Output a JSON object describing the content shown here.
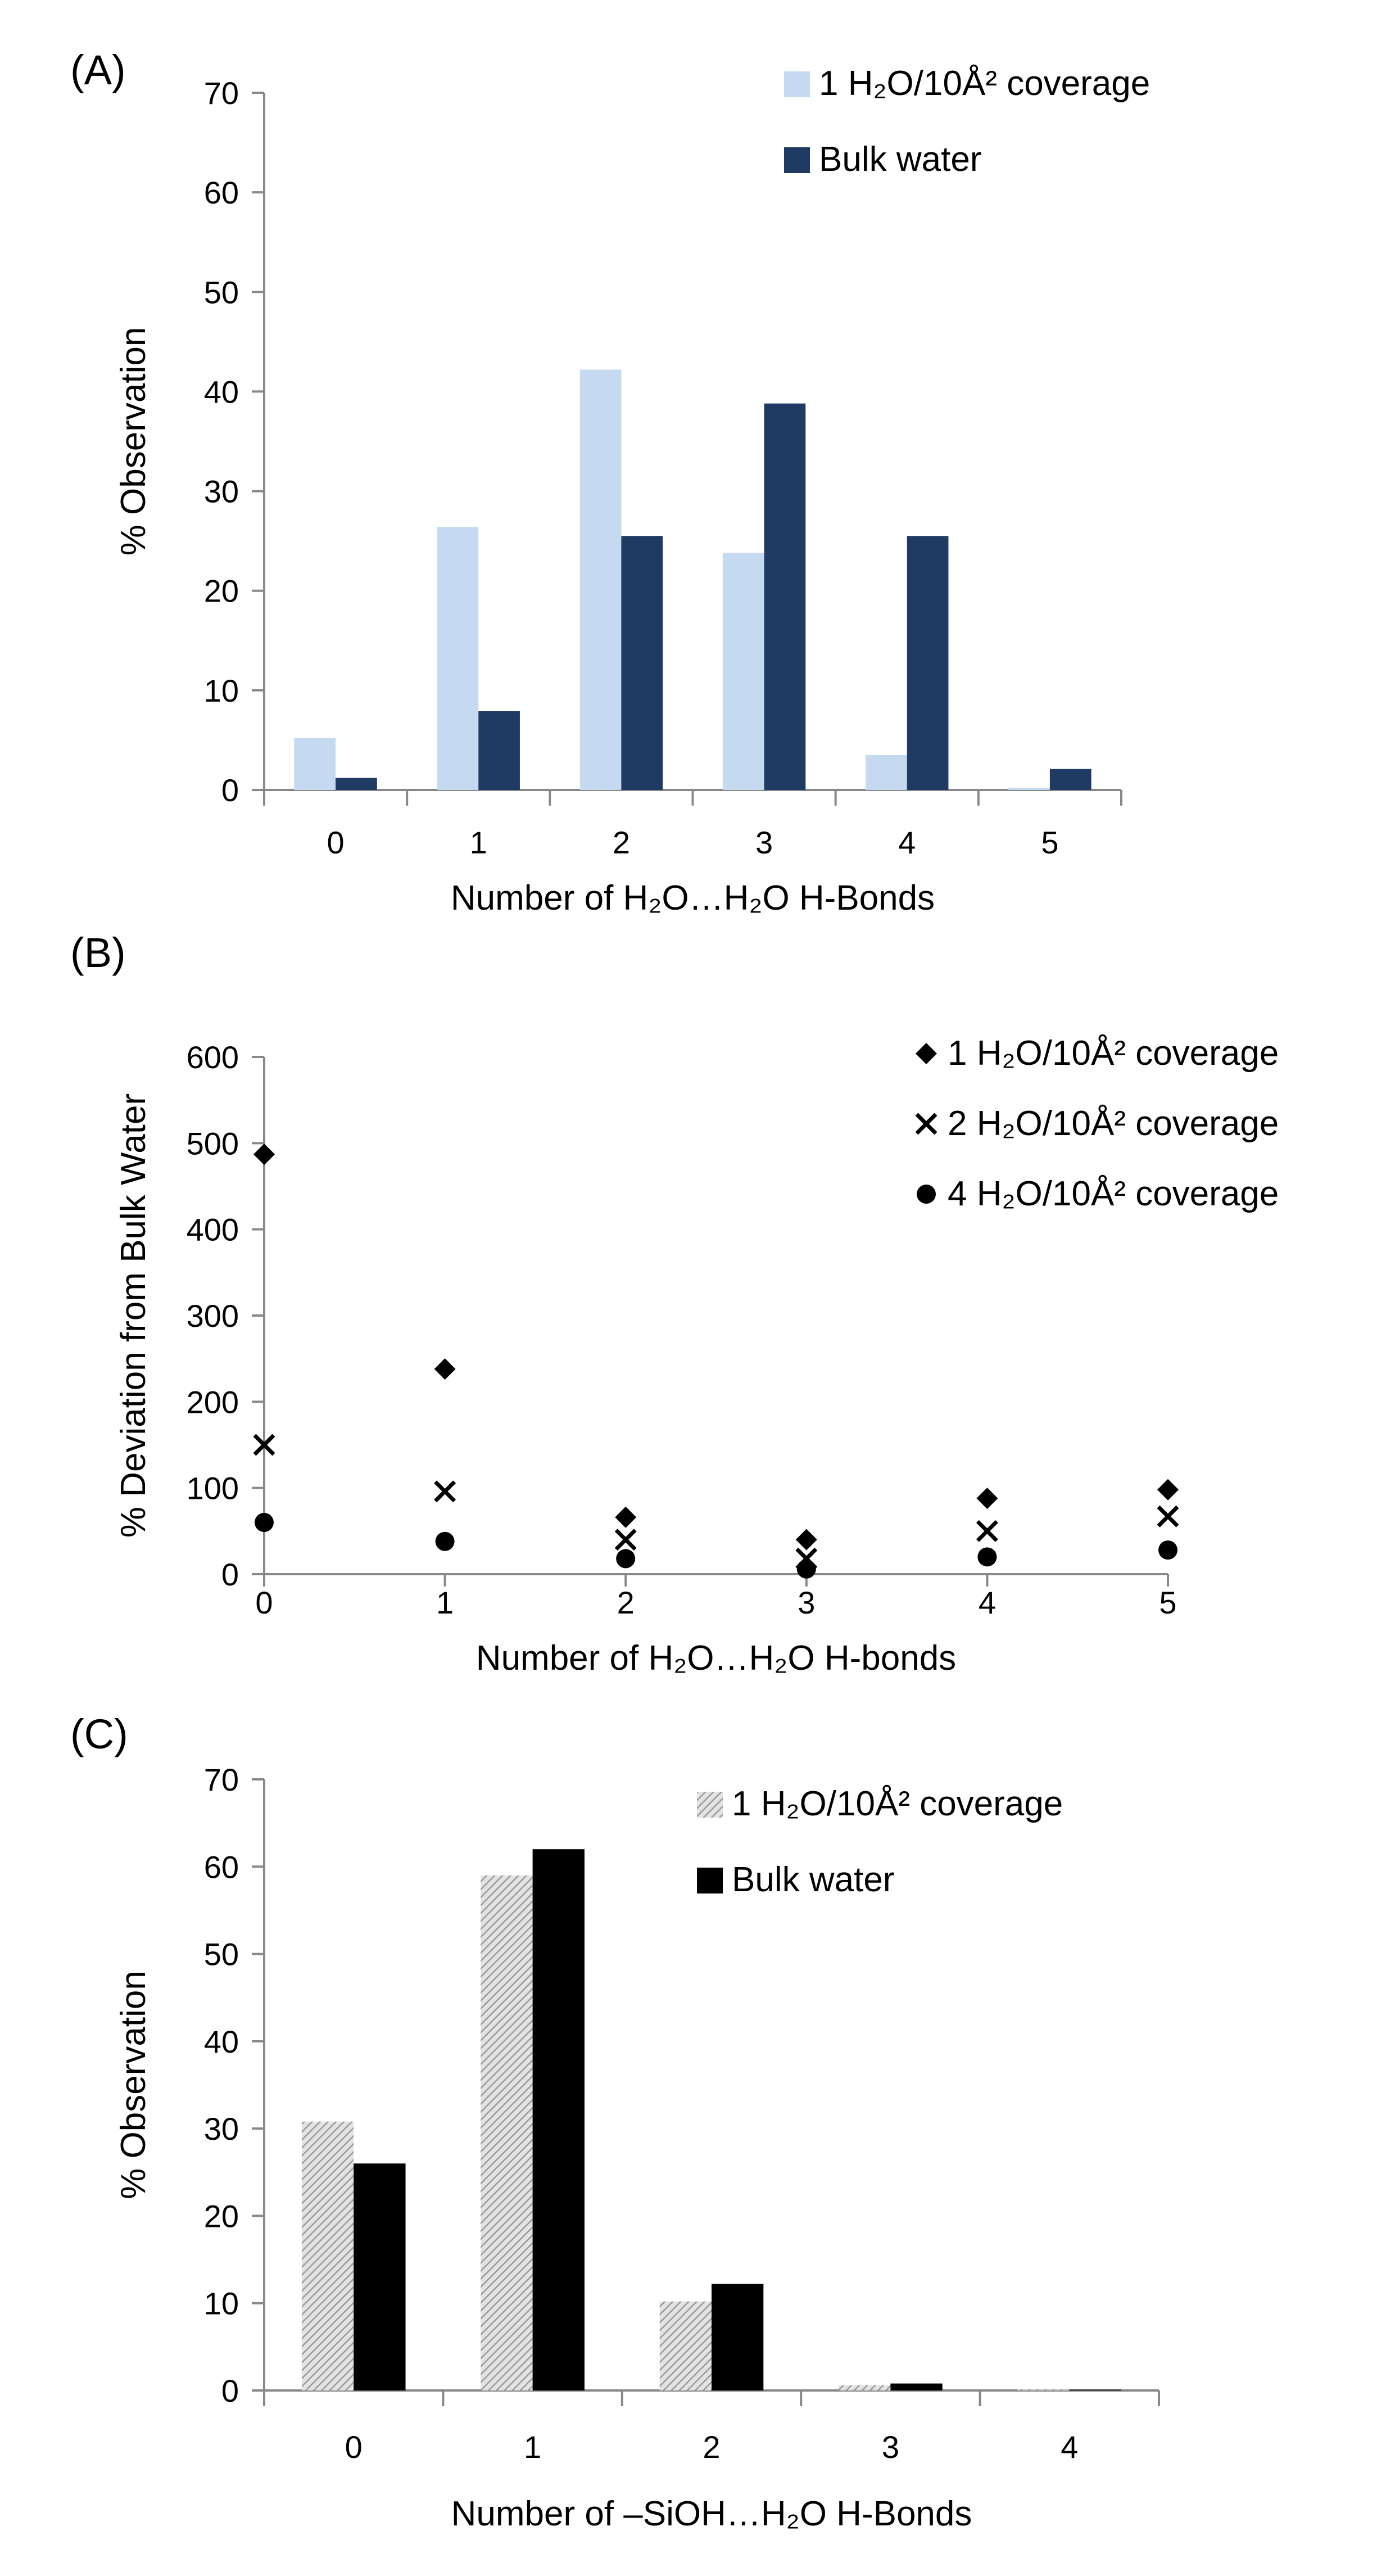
{
  "colors": {
    "panelA_series1": "#c5d9f1",
    "panelA_series2": "#1f3a63",
    "panelC_series2": "#000000",
    "axis": "#888888"
  },
  "chart_data": [
    {
      "panel": "(A)",
      "type": "bar",
      "title": "",
      "xlabel": "Number of H₂O…H₂O H-Bonds",
      "ylabel": "% Observation",
      "categories": [
        "0",
        "1",
        "2",
        "3",
        "4",
        "5"
      ],
      "ylim": [
        0,
        70
      ],
      "yticks": [
        "0",
        "10",
        "20",
        "30",
        "40",
        "50",
        "60",
        "70"
      ],
      "legend_position": "top-right",
      "series": [
        {
          "name": "1 H₂O/10Å² coverage",
          "values": [
            5.2,
            26.4,
            42.2,
            23.8,
            3.5,
            0.2
          ]
        },
        {
          "name": "Bulk water",
          "values": [
            1.2,
            7.9,
            25.5,
            38.8,
            25.5,
            2.1
          ]
        }
      ]
    },
    {
      "panel": "(B)",
      "type": "scatter",
      "title": "",
      "xlabel": "Number of H₂O…H₂O H-bonds",
      "ylabel": "% Deviation from Bulk Water",
      "xlim": [
        0,
        5
      ],
      "ylim": [
        0,
        600
      ],
      "xticks": [
        "0",
        "1",
        "2",
        "3",
        "4",
        "5"
      ],
      "yticks": [
        "0",
        "100",
        "200",
        "300",
        "400",
        "500",
        "600"
      ],
      "legend_position": "top-right",
      "series": [
        {
          "name": "1 H₂O/10Å² coverage",
          "marker": "diamond",
          "x": [
            0,
            1,
            2,
            3,
            4,
            5
          ],
          "values": [
            487,
            238,
            66,
            40,
            88,
            98
          ]
        },
        {
          "name": "2 H₂O/10Å² coverage",
          "marker": "x",
          "x": [
            0,
            1,
            2,
            3,
            4,
            5
          ],
          "values": [
            150,
            96,
            40,
            18,
            50,
            67
          ]
        },
        {
          "name": "4 H₂O/10Å² coverage",
          "marker": "circle",
          "x": [
            0,
            1,
            2,
            3,
            4,
            5
          ],
          "values": [
            60,
            38,
            18,
            6,
            20,
            28
          ]
        }
      ]
    },
    {
      "panel": "(C)",
      "type": "bar",
      "title": "",
      "xlabel": "Number of –SiOH…H₂O H-Bonds",
      "ylabel": "% Observation",
      "categories": [
        "0",
        "1",
        "2",
        "3",
        "4"
      ],
      "ylim": [
        0,
        70
      ],
      "yticks": [
        "0",
        "10",
        "20",
        "30",
        "40",
        "50",
        "60",
        "70"
      ],
      "legend_position": "top-right",
      "series": [
        {
          "name": "1 H₂O/10Å² coverage",
          "pattern": "hatched-gray",
          "values": [
            30.8,
            59.0,
            10.2,
            0.6,
            0.1
          ]
        },
        {
          "name": "Bulk water",
          "values": [
            26.0,
            62.0,
            12.2,
            0.8,
            0.1
          ]
        }
      ]
    }
  ]
}
